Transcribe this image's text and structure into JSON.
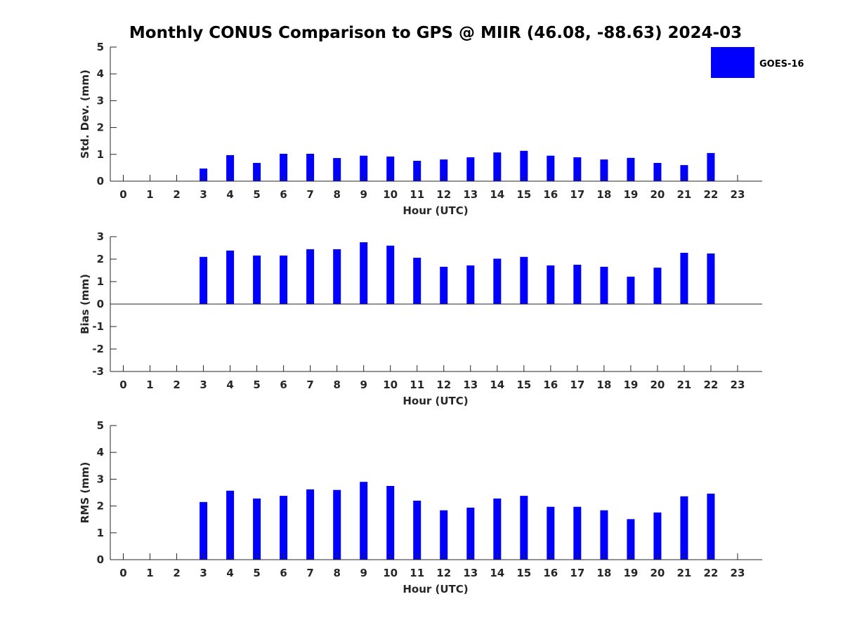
{
  "title": "Monthly CONUS Comparison to GPS @ MIIR (46.08, -88.63) 2024-03",
  "legend": {
    "label": "GOES-16",
    "color": "#0000ff",
    "placement": "top-right"
  },
  "chart_data": [
    {
      "type": "bar",
      "name": "std-dev",
      "xlabel": "Hour (UTC)",
      "ylabel": "Std. Dev. (mm)",
      "ylim": [
        0,
        5
      ],
      "yticks": [
        0,
        1,
        2,
        3,
        4,
        5
      ],
      "categories": [
        "0",
        "1",
        "2",
        "3",
        "4",
        "5",
        "6",
        "7",
        "8",
        "9",
        "10",
        "11",
        "12",
        "13",
        "14",
        "15",
        "16",
        "17",
        "18",
        "19",
        "20",
        "21",
        "22",
        "23"
      ],
      "series": [
        {
          "name": "GOES-16",
          "color": "#0000ff",
          "values": [
            null,
            null,
            null,
            0.47,
            0.97,
            0.68,
            1.02,
            1.02,
            0.86,
            0.95,
            0.92,
            0.76,
            0.81,
            0.89,
            1.07,
            1.13,
            0.95,
            0.89,
            0.81,
            0.87,
            0.68,
            0.6,
            1.05,
            null
          ]
        }
      ]
    },
    {
      "type": "bar",
      "name": "bias",
      "xlabel": "Hour (UTC)",
      "ylabel": "Bias (mm)",
      "ylim": [
        -3,
        3
      ],
      "yticks": [
        -3,
        -2,
        -1,
        0,
        1,
        2,
        3
      ],
      "zero_line": true,
      "categories": [
        "0",
        "1",
        "2",
        "3",
        "4",
        "5",
        "6",
        "7",
        "8",
        "9",
        "10",
        "11",
        "12",
        "13",
        "14",
        "15",
        "16",
        "17",
        "18",
        "19",
        "20",
        "21",
        "22",
        "23"
      ],
      "series": [
        {
          "name": "GOES-16",
          "color": "#0000ff",
          "values": [
            null,
            null,
            null,
            2.1,
            2.38,
            2.16,
            2.16,
            2.44,
            2.44,
            2.75,
            2.6,
            2.06,
            1.66,
            1.72,
            2.02,
            2.1,
            1.72,
            1.75,
            1.66,
            1.22,
            1.62,
            2.28,
            2.25,
            null
          ]
        }
      ]
    },
    {
      "type": "bar",
      "name": "rms",
      "xlabel": "Hour (UTC)",
      "ylabel": "RMS (mm)",
      "ylim": [
        0,
        5
      ],
      "yticks": [
        0,
        1,
        2,
        3,
        4,
        5
      ],
      "categories": [
        "0",
        "1",
        "2",
        "3",
        "4",
        "5",
        "6",
        "7",
        "8",
        "9",
        "10",
        "11",
        "12",
        "13",
        "14",
        "15",
        "16",
        "17",
        "18",
        "19",
        "20",
        "21",
        "22",
        "23"
      ],
      "series": [
        {
          "name": "GOES-16",
          "color": "#0000ff",
          "values": [
            null,
            null,
            null,
            2.15,
            2.57,
            2.28,
            2.38,
            2.62,
            2.6,
            2.9,
            2.75,
            2.2,
            1.84,
            1.94,
            2.28,
            2.38,
            1.97,
            1.97,
            1.84,
            1.51,
            1.76,
            2.36,
            2.46,
            null
          ]
        }
      ]
    }
  ]
}
